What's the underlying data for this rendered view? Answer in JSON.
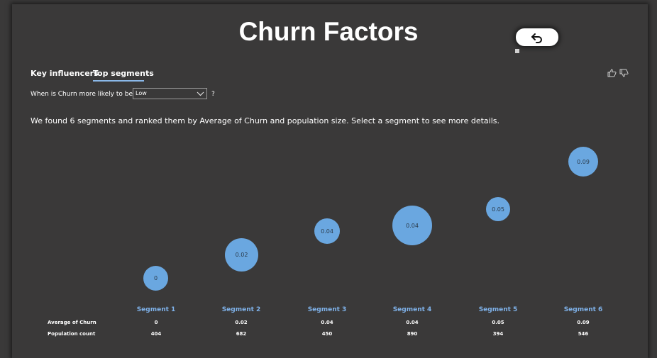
{
  "title": "Churn Factors",
  "tabs": [
    "Key influencers",
    "Top segments"
  ],
  "active_tab": "Top segments",
  "question": {
    "prefix": "When is Churn more likely to be",
    "selected": "Low",
    "suffix": "?"
  },
  "summary": "We found 6 segments and ranked them by Average of Churn and population size. Select a segment to see more details.",
  "row_labels": [
    "Average of Churn",
    "Population count"
  ],
  "segments": [
    {
      "name": "Segment 1",
      "avg": "0",
      "pop": "404",
      "value": 0
    },
    {
      "name": "Segment 2",
      "avg": "0.02",
      "pop": "682",
      "value": 0.02
    },
    {
      "name": "Segment 3",
      "avg": "0.04",
      "pop": "450",
      "value": 0.04
    },
    {
      "name": "Segment 4",
      "avg": "0.04",
      "pop": "890",
      "value": 0.04
    },
    {
      "name": "Segment 5",
      "avg": "0.05",
      "pop": "394",
      "value": 0.05
    },
    {
      "name": "Segment 6",
      "avg": "0.09",
      "pop": "546",
      "value": 0.09
    }
  ],
  "colors": {
    "bubble": "#6aa7e0",
    "segment_label": "#7fb2ea",
    "background": "#3a3939"
  }
}
